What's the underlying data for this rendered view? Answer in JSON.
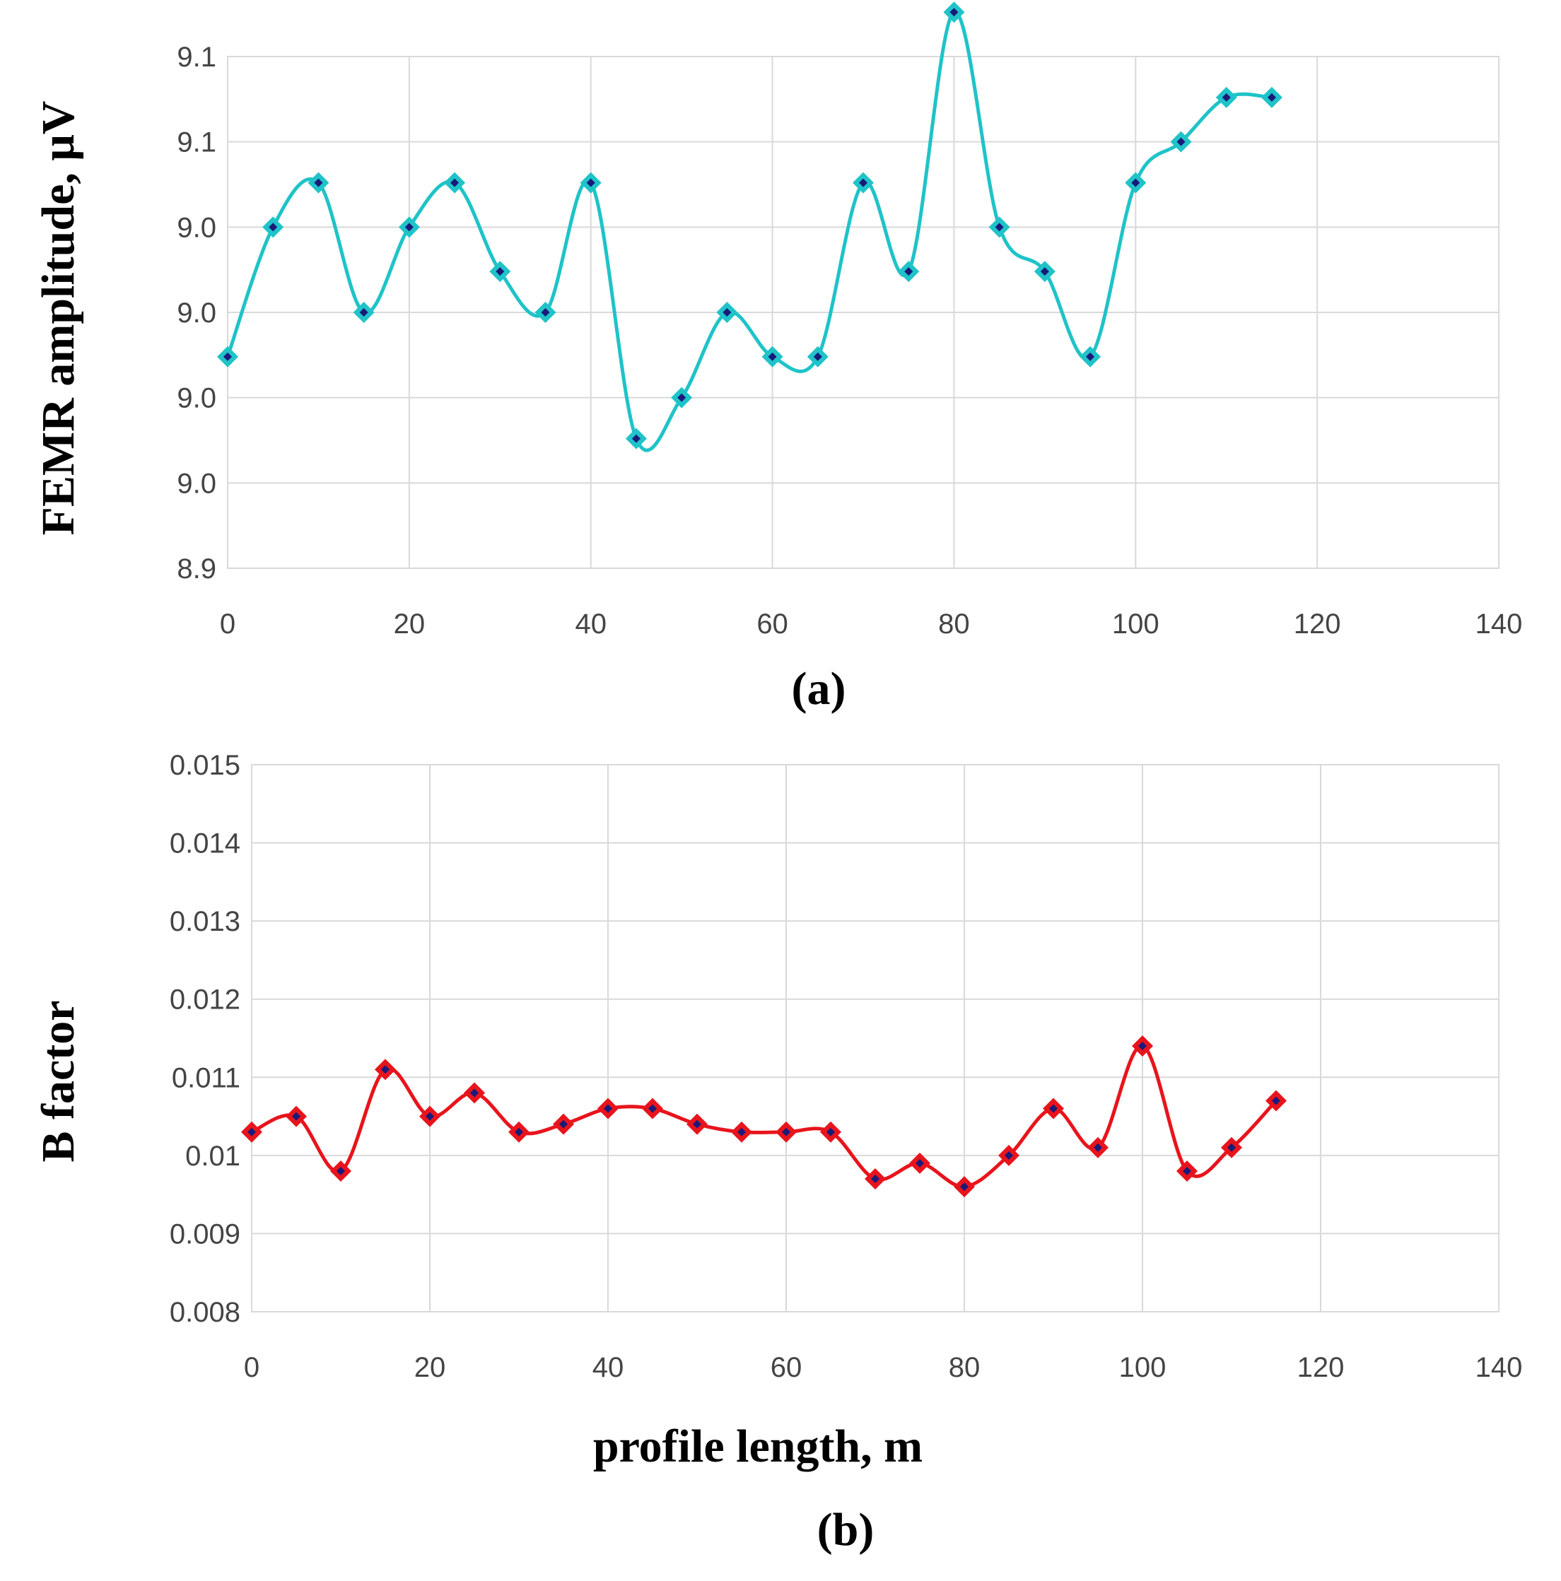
{
  "chart_data": [
    {
      "type": "line",
      "panel_label": "(a)",
      "title": "",
      "xlabel": "",
      "ylabel": "FEMR amplitude, μV",
      "xlim": [
        0,
        140
      ],
      "ylim": [
        8.95,
        9.1
      ],
      "xticks": [
        0,
        20,
        40,
        60,
        80,
        100,
        120,
        140
      ],
      "xtick_labels": [
        "0",
        "20",
        "40",
        "60",
        "80",
        "100",
        "120",
        "140"
      ],
      "yticks": [
        8.95,
        8.975,
        9.0,
        9.025,
        9.05,
        9.075,
        9.1
      ],
      "ytick_labels": [
        "8.9",
        "9.0",
        "9.0",
        "9.0",
        "9.0",
        "9.1",
        "9.1"
      ],
      "grid": true,
      "series": [
        {
          "name": "FEMR amplitude",
          "line_color": "#1fc3c8",
          "marker_color": "#1a1a7a",
          "x": [
            0,
            5,
            10,
            15,
            20,
            25,
            30,
            35,
            40,
            45,
            50,
            55,
            60,
            65,
            70,
            75,
            80,
            85,
            90,
            95,
            100,
            105,
            110,
            115
          ],
          "values": [
            9.012,
            9.05,
            9.063,
            9.025,
            9.05,
            9.063,
            9.037,
            9.025,
            9.063,
            8.988,
            9.0,
            9.025,
            9.012,
            9.012,
            9.063,
            9.037,
            9.113,
            9.05,
            9.037,
            9.012,
            9.063,
            9.075,
            9.088,
            9.088
          ]
        }
      ]
    },
    {
      "type": "line",
      "panel_label": "(b)",
      "title": "",
      "xlabel": "profile length, m",
      "ylabel": "B factor",
      "xlim": [
        0,
        140
      ],
      "ylim": [
        0.008,
        0.015
      ],
      "xticks": [
        0,
        20,
        40,
        60,
        80,
        100,
        120,
        140
      ],
      "xtick_labels": [
        "0",
        "20",
        "40",
        "60",
        "80",
        "100",
        "120",
        "140"
      ],
      "yticks": [
        0.008,
        0.009,
        0.01,
        0.011,
        0.012,
        0.013,
        0.014,
        0.015
      ],
      "ytick_labels": [
        "0.008",
        "0.009",
        "0.01",
        "0.011",
        "0.012",
        "0.013",
        "0.014",
        "0.015"
      ],
      "grid": true,
      "series": [
        {
          "name": "B factor",
          "line_color": "#e8141c",
          "marker_color": "#1a1a7a",
          "x": [
            0,
            5,
            10,
            15,
            20,
            25,
            30,
            35,
            40,
            45,
            50,
            55,
            60,
            65,
            70,
            75,
            80,
            85,
            90,
            95,
            100,
            105,
            110,
            115
          ],
          "values": [
            0.0103,
            0.0105,
            0.0098,
            0.0111,
            0.0105,
            0.0108,
            0.0103,
            0.0104,
            0.0106,
            0.0106,
            0.0104,
            0.0103,
            0.0103,
            0.0103,
            0.0097,
            0.0099,
            0.0096,
            0.01,
            0.0106,
            0.0101,
            0.0114,
            0.0098,
            0.0101,
            0.0107
          ]
        }
      ]
    }
  ]
}
